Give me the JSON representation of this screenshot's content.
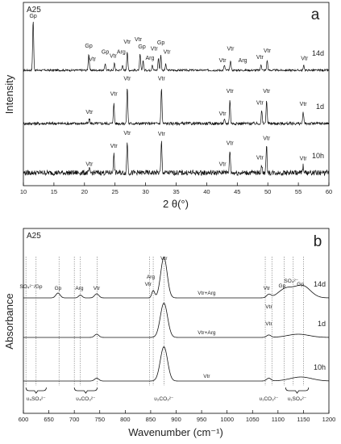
{
  "chart_data": [
    {
      "type": "line",
      "panel": "a",
      "sample": "A25",
      "xlabel": "2 θ(°)",
      "ylabel": "Intensity",
      "xlim": [
        10,
        60
      ],
      "xticks": [
        10,
        15,
        20,
        25,
        30,
        35,
        40,
        45,
        50,
        55,
        60
      ],
      "grid": false,
      "series": [
        {
          "name": "14d",
          "peaks": [
            {
              "x": 11.6,
              "h": 1.0
            },
            {
              "x": 20.7,
              "h": 0.33
            },
            {
              "x": 23.4,
              "h": 0.14
            },
            {
              "x": 24.9,
              "h": 0.14
            },
            {
              "x": 26.2,
              "h": 0.1
            },
            {
              "x": 27.0,
              "h": 0.38
            },
            {
              "x": 29.1,
              "h": 0.32
            },
            {
              "x": 29.6,
              "h": 0.2
            },
            {
              "x": 31.1,
              "h": 0.12
            },
            {
              "x": 32.1,
              "h": 0.24
            },
            {
              "x": 32.5,
              "h": 0.3
            },
            {
              "x": 33.3,
              "h": 0.12
            },
            {
              "x": 42.9,
              "h": 0.1
            },
            {
              "x": 43.9,
              "h": 0.2
            },
            {
              "x": 48.9,
              "h": 0.12
            },
            {
              "x": 49.9,
              "h": 0.2
            },
            {
              "x": 55.9,
              "h": 0.1
            }
          ]
        },
        {
          "name": "1d",
          "peaks": [
            {
              "x": 20.8,
              "h": 0.1
            },
            {
              "x": 24.8,
              "h": 0.45
            },
            {
              "x": 27.0,
              "h": 0.8
            },
            {
              "x": 32.6,
              "h": 0.8
            },
            {
              "x": 42.9,
              "h": 0.08
            },
            {
              "x": 43.8,
              "h": 0.52
            },
            {
              "x": 49.0,
              "h": 0.28
            },
            {
              "x": 49.8,
              "h": 0.52
            },
            {
              "x": 55.8,
              "h": 0.25
            }
          ]
        },
        {
          "name": "10h",
          "peaks": [
            {
              "x": 20.8,
              "h": 0.08
            },
            {
              "x": 24.8,
              "h": 0.48
            },
            {
              "x": 27.0,
              "h": 0.82
            },
            {
              "x": 32.6,
              "h": 0.8
            },
            {
              "x": 42.9,
              "h": 0.08
            },
            {
              "x": 43.8,
              "h": 0.58
            },
            {
              "x": 49.0,
              "h": 0.22
            },
            {
              "x": 49.8,
              "h": 0.68
            },
            {
              "x": 55.8,
              "h": 0.18
            }
          ]
        }
      ],
      "annotations": [
        {
          "text": "Gp",
          "x": 11.6,
          "series": "14d",
          "h": 1.02
        },
        {
          "text": "Gp",
          "x": 20.7,
          "series": "14d",
          "h": 0.42
        },
        {
          "text": "Vtr",
          "x": 21.3,
          "series": "14d",
          "h": 0.15
        },
        {
          "text": "Gp",
          "x": 23.4,
          "series": "14d",
          "h": 0.3
        },
        {
          "text": "Vtr",
          "x": 24.7,
          "series": "14d",
          "h": 0.22
        },
        {
          "text": "Arg",
          "x": 26.0,
          "series": "14d",
          "h": 0.3
        },
        {
          "text": "Vtr",
          "x": 27.0,
          "series": "14d",
          "h": 0.5
        },
        {
          "text": "Vtr",
          "x": 28.8,
          "series": "14d",
          "h": 0.55
        },
        {
          "text": "Gp",
          "x": 29.4,
          "series": "14d",
          "h": 0.4
        },
        {
          "text": "Arg",
          "x": 30.7,
          "series": "14d",
          "h": 0.18
        },
        {
          "text": "Vtr",
          "x": 31.4,
          "series": "14d",
          "h": 0.36
        },
        {
          "text": "Gp",
          "x": 32.5,
          "series": "14d",
          "h": 0.48
        },
        {
          "text": "Vtr",
          "x": 33.5,
          "series": "14d",
          "h": 0.3
        },
        {
          "text": "Vtr",
          "x": 42.6,
          "series": "14d",
          "h": 0.13
        },
        {
          "text": "Vtr",
          "x": 43.9,
          "series": "14d",
          "h": 0.36
        },
        {
          "text": "Arg",
          "x": 45.9,
          "series": "14d",
          "h": 0.13
        },
        {
          "text": "Vtr",
          "x": 48.7,
          "series": "14d",
          "h": 0.19
        },
        {
          "text": "Vtr",
          "x": 49.9,
          "series": "14d",
          "h": 0.32
        },
        {
          "text": "Vtr",
          "x": 56.0,
          "series": "14d",
          "h": 0.17
        },
        {
          "text": "Vtr",
          "x": 20.8,
          "series": "1d",
          "h": 0.18
        },
        {
          "text": "Vtr",
          "x": 24.8,
          "series": "1d",
          "h": 0.58
        },
        {
          "text": "Vtr",
          "x": 27.0,
          "series": "1d",
          "h": 0.92
        },
        {
          "text": "Vtr",
          "x": 32.6,
          "series": "1d",
          "h": 0.92
        },
        {
          "text": "Vtr",
          "x": 42.6,
          "series": "1d",
          "h": 0.14
        },
        {
          "text": "Vtr",
          "x": 43.8,
          "series": "1d",
          "h": 0.64
        },
        {
          "text": "Vtr",
          "x": 48.7,
          "series": "1d",
          "h": 0.38
        },
        {
          "text": "Vtr",
          "x": 49.8,
          "series": "1d",
          "h": 0.64
        },
        {
          "text": "Vtr",
          "x": 55.8,
          "series": "1d",
          "h": 0.36
        },
        {
          "text": "Vtr",
          "x": 20.8,
          "series": "10h",
          "h": 0.14
        },
        {
          "text": "Vtr",
          "x": 24.8,
          "series": "10h",
          "h": 0.6
        },
        {
          "text": "Vtr",
          "x": 27.0,
          "series": "10h",
          "h": 0.94
        },
        {
          "text": "Vtr",
          "x": 32.6,
          "series": "10h",
          "h": 0.92
        },
        {
          "text": "Vtr",
          "x": 42.6,
          "series": "10h",
          "h": 0.14
        },
        {
          "text": "Vtr",
          "x": 43.8,
          "series": "10h",
          "h": 0.68
        },
        {
          "text": "Vtr",
          "x": 48.7,
          "series": "10h",
          "h": 0.3
        },
        {
          "text": "Vtr",
          "x": 49.8,
          "series": "10h",
          "h": 0.8
        },
        {
          "text": "Vtr",
          "x": 55.8,
          "series": "10h",
          "h": 0.28
        }
      ]
    },
    {
      "type": "line",
      "panel": "b",
      "sample": "A25",
      "xlabel": "Wavenumber (cm⁻¹)",
      "ylabel": "Absorbance",
      "xlim": [
        600,
        1200
      ],
      "xticks": [
        600,
        650,
        700,
        750,
        800,
        850,
        900,
        950,
        1000,
        1050,
        1100,
        1150,
        1200
      ],
      "grid": false,
      "series": [
        {
          "name": "14d",
          "mixture": "Vtr+Arg",
          "baseline": 0.0,
          "features": [
            {
              "x": 668,
              "h": 0.12,
              "w": 6
            },
            {
              "x": 712,
              "h": 0.07,
              "w": 5
            },
            {
              "x": 744,
              "h": 0.1,
              "w": 6
            },
            {
              "x": 855,
              "h": 0.18,
              "w": 4
            },
            {
              "x": 876,
              "h": 1.0,
              "w": 9
            },
            {
              "x": 1082,
              "h": 0.08,
              "w": 6
            },
            {
              "x": 1115,
              "h": 0.22,
              "w": 20
            },
            {
              "x": 1148,
              "h": 0.3,
              "w": 22
            }
          ]
        },
        {
          "name": "1d",
          "mixture": "Vtr+Arg",
          "baseline": 0.0,
          "features": [
            {
              "x": 744,
              "h": 0.08,
              "w": 6
            },
            {
              "x": 876,
              "h": 0.85,
              "w": 10
            },
            {
              "x": 1082,
              "h": 0.06,
              "w": 6
            },
            {
              "x": 1140,
              "h": 0.08,
              "w": 30
            }
          ]
        },
        {
          "name": "10h",
          "mixture": "Vtr",
          "baseline": 0.0,
          "features": [
            {
              "x": 744,
              "h": 0.07,
              "w": 6
            },
            {
              "x": 876,
              "h": 0.85,
              "w": 10
            },
            {
              "x": 1082,
              "h": 0.07,
              "w": 6
            },
            {
              "x": 1145,
              "h": 0.1,
              "w": 30
            }
          ]
        }
      ],
      "reference_lines": [
        605,
        625,
        670,
        700,
        712,
        745,
        848,
        855,
        876,
        1075,
        1088,
        1112,
        1130,
        1150
      ],
      "annotations": [
        {
          "text": "SO₄²⁻/Gp",
          "x": 615,
          "h": 1.22
        },
        {
          "text": "Gp",
          "x": 668,
          "h": 1.18
        },
        {
          "text": "Arg",
          "x": 710,
          "h": 1.18
        },
        {
          "text": "Vtr",
          "x": 744,
          "h": 1.18
        },
        {
          "text": "Arg",
          "x": 850,
          "h": 1.46
        },
        {
          "text": "Vtr",
          "x": 845,
          "h": 1.28
        },
        {
          "text": "Vtr",
          "x": 876,
          "h": 1.92
        },
        {
          "text": "Vtr",
          "x": 1078,
          "h": 1.18
        },
        {
          "text": "Gp",
          "x": 1108,
          "h": 1.24
        },
        {
          "text": "SO₄²⁻",
          "x": 1126,
          "h": 1.36
        },
        {
          "text": "Gp",
          "x": 1144,
          "h": 1.28
        },
        {
          "text": "Vtr",
          "x": 1082,
          "h": 0.72
        },
        {
          "text": "Vtr",
          "x": 1082,
          "h": 0.3
        }
      ],
      "band_labels": [
        {
          "text": "υ₄SO₄²⁻",
          "from": 605,
          "to": 645
        },
        {
          "text": "υ₄CO₃²⁻",
          "from": 700,
          "to": 745
        },
        {
          "text": "υ₂CO₃²⁻",
          "from": 876,
          "to": 876
        },
        {
          "text": "υ₁CO₃²⁻",
          "from": 1082,
          "to": 1082
        },
        {
          "text": "υ₁SO₄²⁻",
          "from": 1115,
          "to": 1160
        }
      ]
    }
  ]
}
